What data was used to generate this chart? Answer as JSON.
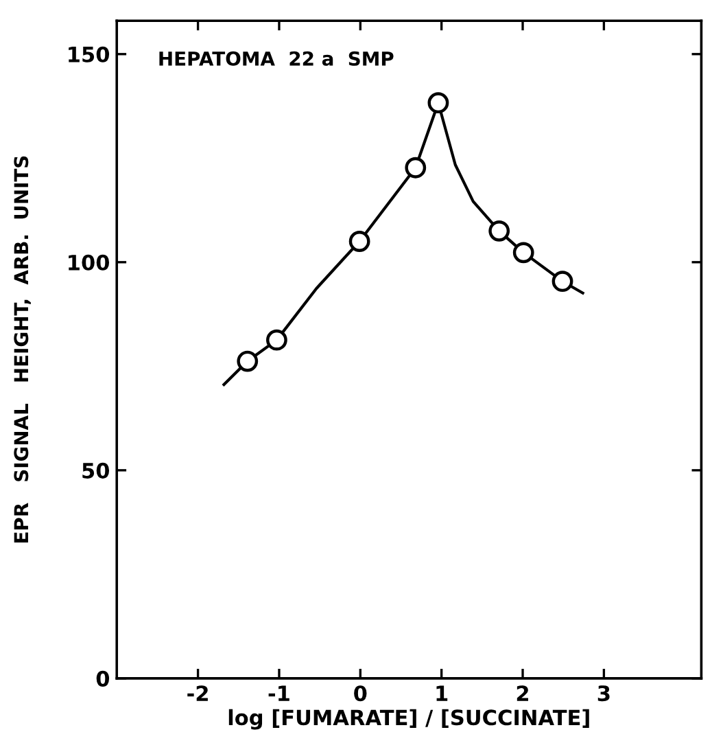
{
  "chart_data": {
    "type": "scatter",
    "xlabel": "log [FUMARATE] / [SUCCINATE]",
    "ylabel": "EPR   SIGNAL   HEIGHT,  ARB.  UNITS",
    "annotations": [
      "HEPATOMA  22 a  SMP"
    ],
    "xlim": [
      -3,
      4.2
    ],
    "xticks": [
      -2,
      -1,
      0,
      1,
      2,
      3
    ],
    "ylim": [
      0,
      158
    ],
    "yticks": [
      0,
      50,
      100,
      150
    ],
    "grid": false,
    "legend": false,
    "series": [
      {
        "type": "line",
        "color": "#000000",
        "marker": "none",
        "line_style": "solid",
        "x": [
          -1.68,
          -1.39,
          -1.03,
          -0.54,
          -0.01,
          0.68,
          0.96,
          1.17,
          1.39,
          1.71,
          2.01,
          2.49,
          2.74
        ],
        "values": [
          70.6,
          76.2,
          81.3,
          93.7,
          105,
          122.7,
          138.3,
          123.4,
          114.6,
          107.5,
          102.3,
          95.4,
          92.6
        ]
      },
      {
        "color": "#000000",
        "marker": "circle",
        "x": [
          -1.39,
          -1.03,
          -0.01,
          0.68,
          0.96,
          1.71,
          2.01,
          2.49
        ],
        "values": [
          76.2,
          81.3,
          105,
          122.7,
          138.3,
          107.5,
          102.3,
          95.4
        ]
      }
    ]
  }
}
